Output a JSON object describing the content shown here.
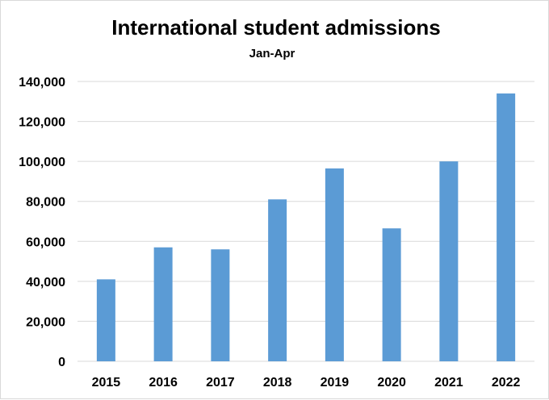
{
  "chart_data": {
    "type": "bar",
    "title": "International student admissions",
    "subtitle": "Jan-Apr",
    "xlabel": "",
    "ylabel": "",
    "categories": [
      "2015",
      "2016",
      "2017",
      "2018",
      "2019",
      "2020",
      "2021",
      "2022"
    ],
    "values": [
      41000,
      57000,
      56000,
      81000,
      96500,
      66500,
      100000,
      134000
    ],
    "ylim": [
      0,
      140000
    ],
    "yticks": [
      "0",
      "20,000",
      "40,000",
      "60,000",
      "80,000",
      "100,000",
      "120,000",
      "140,000"
    ],
    "ytick_values": [
      0,
      20000,
      40000,
      60000,
      80000,
      100000,
      120000,
      140000
    ],
    "grid": true,
    "legend": "none",
    "colors": {
      "bar": "#5b9bd5",
      "grid": "#d9d9d9",
      "text": "#000000"
    }
  }
}
